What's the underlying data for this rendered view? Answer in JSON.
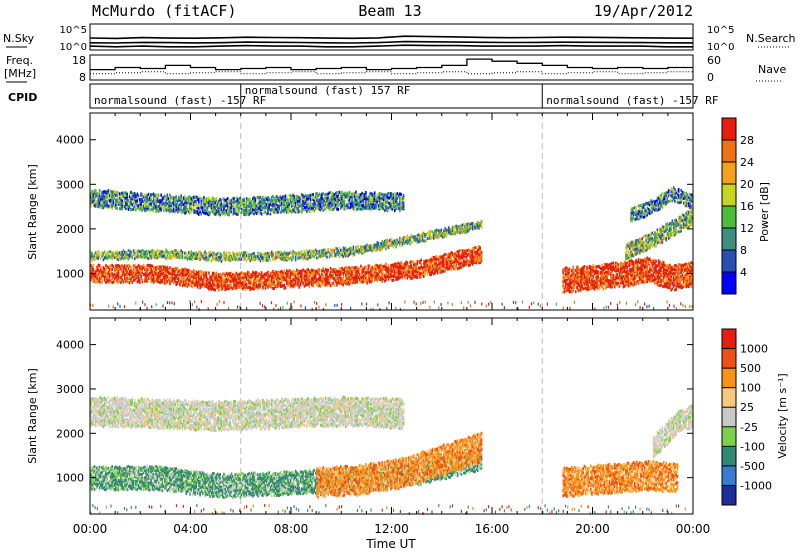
{
  "header": {
    "station": "McMurdo (fitACF)",
    "beam": "Beam 13",
    "date": "19/Apr/2012"
  },
  "chart_data": [
    {
      "type": "line",
      "panel": "noise",
      "left_label": "N.Sky",
      "right_label": "N.Search",
      "left_ticks": [
        "10^5",
        "10^0"
      ],
      "right_ticks": [
        "10^5",
        "10^0"
      ],
      "scale": "log",
      "series": [
        {
          "values": [
            320,
            250,
            400,
            300,
            280,
            350,
            500,
            420,
            380,
            300,
            260,
            330,
            900,
            700,
            600,
            450,
            380,
            420,
            500,
            460,
            400,
            350,
            300,
            280
          ]
        },
        {
          "values": [
            20,
            18,
            25,
            22,
            19,
            21,
            30,
            26,
            24,
            20,
            18,
            22,
            40,
            35,
            30,
            26,
            24,
            25,
            28,
            27,
            25,
            22,
            20,
            19
          ]
        },
        {
          "values": [
            3,
            2,
            3,
            2,
            2,
            3,
            4,
            3,
            3,
            2,
            2,
            3,
            5,
            4,
            4,
            3,
            3,
            3,
            4,
            3,
            3,
            3,
            2,
            2
          ]
        }
      ]
    },
    {
      "type": "line",
      "panel": "frequency",
      "left_label_line1": "Freq.",
      "left_label_line2": "[MHz]",
      "right_label": "Nave",
      "left_ticks": [
        18,
        8
      ],
      "right_ticks": [
        60,
        0
      ],
      "ylim": [
        8,
        18
      ],
      "series": [
        {
          "values": [
            12,
            13,
            12.5,
            14,
            13,
            12,
            12.5,
            13,
            12,
            12.5,
            13,
            12,
            12.5,
            13,
            14,
            17,
            16,
            15,
            14,
            13,
            12.5,
            13,
            12.5,
            13
          ]
        },
        {
          "values": [
            10,
            10.5,
            11,
            10,
            10.5,
            11,
            10,
            10.5,
            11,
            10,
            10.5,
            11,
            10,
            10.5,
            11,
            10,
            10.5,
            11,
            10,
            10.5,
            11,
            10,
            10.5,
            11
          ]
        }
      ]
    },
    {
      "type": "table",
      "panel": "cpid",
      "label": "CPID",
      "segments": [
        {
          "start_hour": 0,
          "end_hour": 6,
          "text": "normalsound (fast) -157 RF"
        },
        {
          "start_hour": 6,
          "end_hour": 18,
          "text": "normalsound (fast) 157 RF"
        },
        {
          "start_hour": 18,
          "end_hour": 24,
          "text": "normalsound (fast) -157 RF"
        }
      ]
    },
    {
      "type": "heatmap",
      "panel": "power",
      "ylabel": "Slant Range [km]",
      "yticks": [
        1000,
        2000,
        3000,
        4000
      ],
      "ylim": [
        180,
        4600
      ],
      "xlim": [
        0,
        24
      ],
      "colorbar": {
        "label": "Power [dB]",
        "ticks": [
          4,
          8,
          12,
          16,
          20,
          24,
          28
        ],
        "colors": [
          "#0000ff",
          "#2a4fb3",
          "#3f8e7e",
          "#4dbb3c",
          "#c8d520",
          "#f6a11a",
          "#f07014",
          "#e51e10"
        ]
      },
      "bands": [
        {
          "start": 0.0,
          "end": 15.6,
          "base": [
            1000,
            1000,
            820,
            880,
            960,
            1100,
            1450
          ],
          "w": 380,
          "shade": "warm"
        },
        {
          "start": 0.0,
          "end": 15.6,
          "base": [
            1400,
            1450,
            1380,
            1400,
            1500,
            1800,
            2100
          ],
          "w": 180,
          "shade": "mid"
        },
        {
          "start": 0.0,
          "end": 12.5,
          "base": [
            2700,
            2600,
            2500,
            2550,
            2650,
            2600
          ],
          "w": 380,
          "shade": "cool"
        },
        {
          "start": 18.8,
          "end": 24.0,
          "base": [
            850,
            900,
            950,
            1000,
            1100,
            900,
            1000
          ],
          "w": 550,
          "shade": "warm"
        },
        {
          "start": 21.3,
          "end": 24.0,
          "base": [
            1500,
            1700,
            2000,
            2300
          ],
          "w": 350,
          "shade": "mid"
        },
        {
          "start": 21.5,
          "end": 24.0,
          "base": [
            2300,
            2500,
            2800,
            2600
          ],
          "w": 300,
          "shade": "cool"
        }
      ]
    },
    {
      "type": "heatmap",
      "panel": "velocity",
      "ylabel": "Slant Range [km]",
      "xlabel": "Time UT",
      "xticks": [
        "00:00",
        "04:00",
        "08:00",
        "12:00",
        "16:00",
        "20:00",
        "00:00"
      ],
      "yticks": [
        1000,
        2000,
        3000,
        4000
      ],
      "ylim": [
        180,
        4600
      ],
      "xlim": [
        0,
        24
      ],
      "colorbar": {
        "label": "Velocity [m s⁻¹]",
        "ticks": [
          "1000",
          "500",
          "100",
          "25",
          "-25",
          "-100",
          "-500",
          "-1000"
        ],
        "colors": [
          "#1d2e9c",
          "#3b7bd0",
          "#2e8a72",
          "#7cd04a",
          "#c8c8c8",
          "#f8c87a",
          "#f7921a",
          "#f05015",
          "#e51e10"
        ]
      },
      "bands": [
        {
          "start": 0.0,
          "end": 15.6,
          "base": [
            1000,
            1000,
            820,
            880,
            960,
            1100,
            1450
          ],
          "w": 520,
          "shade": "green"
        },
        {
          "start": 9.0,
          "end": 15.6,
          "base": [
            900,
            950,
            1100,
            1400,
            1700
          ],
          "w": 650,
          "shade": "orange"
        },
        {
          "start": 0.0,
          "end": 12.5,
          "base": [
            2500,
            2450,
            2400,
            2450,
            2500,
            2450
          ],
          "w": 650,
          "shade": "grey"
        },
        {
          "start": 18.8,
          "end": 23.4,
          "base": [
            900,
            950,
            1000,
            1050,
            1000
          ],
          "w": 650,
          "shade": "orange"
        },
        {
          "start": 22.4,
          "end": 24.0,
          "base": [
            1700,
            2000,
            2300,
            2400
          ],
          "w": 500,
          "shade": "grey"
        }
      ]
    }
  ]
}
